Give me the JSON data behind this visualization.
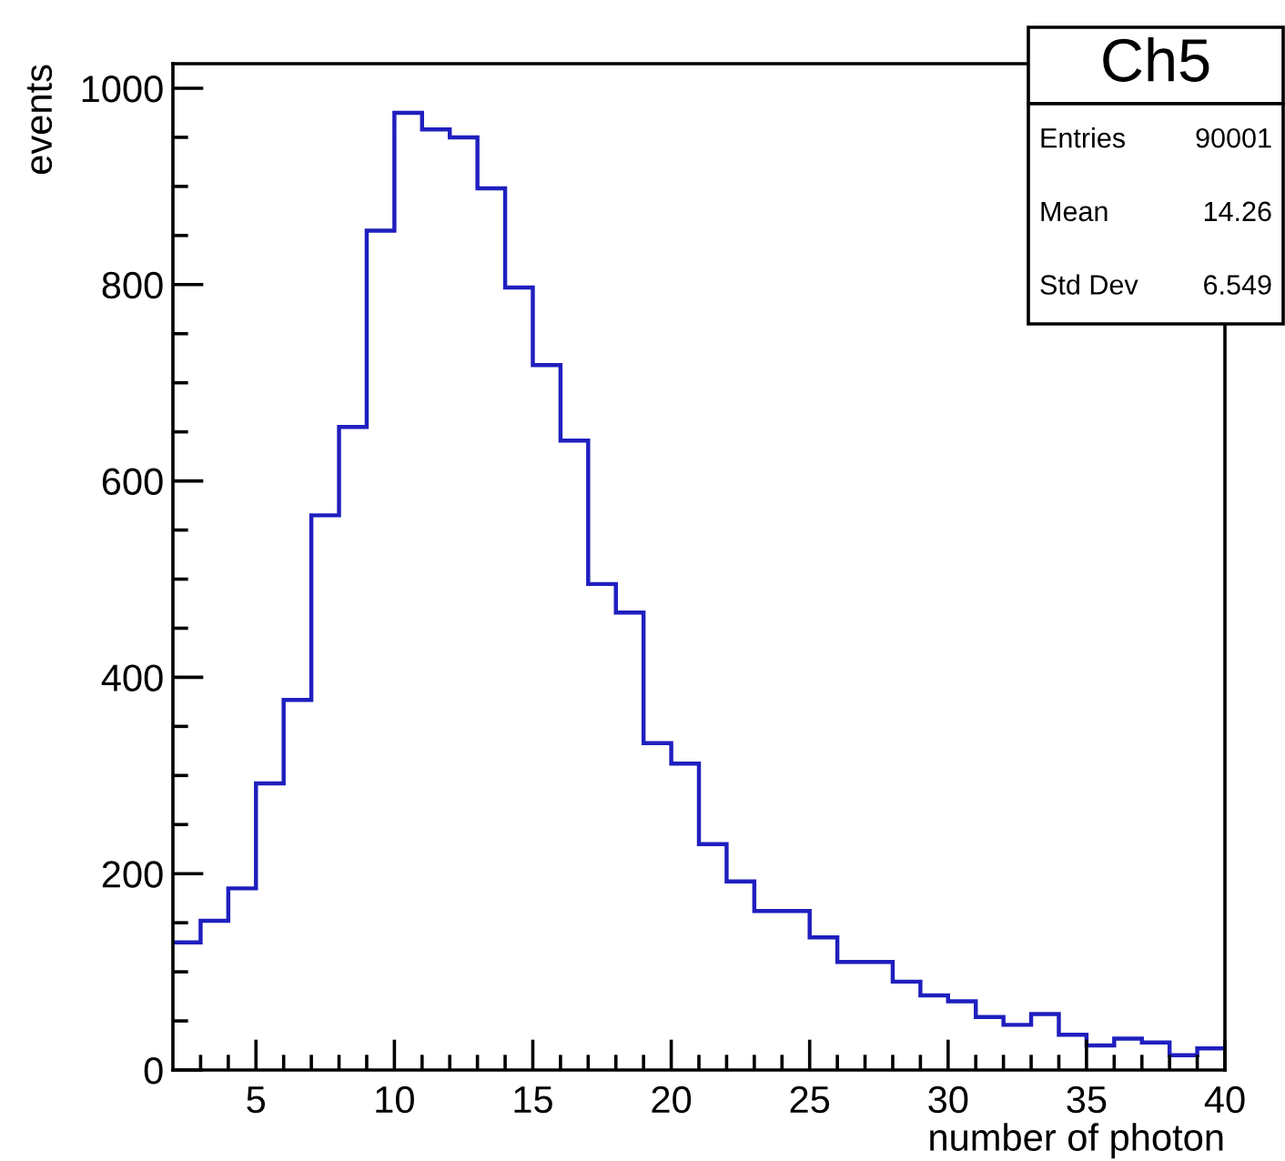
{
  "chart_data": {
    "type": "histogram",
    "title": "Ch5",
    "xlabel": "number of photon",
    "ylabel": "events",
    "bins": [
      2,
      3,
      4,
      5,
      6,
      7,
      8,
      9,
      10,
      11,
      12,
      13,
      14,
      15,
      16,
      17,
      18,
      19,
      20,
      21,
      22,
      23,
      24,
      25,
      26,
      27,
      28,
      29,
      30,
      31,
      32,
      33,
      34,
      35,
      36,
      37,
      38,
      39,
      40
    ],
    "values": [
      130,
      152,
      185,
      292,
      377,
      565,
      655,
      855,
      975,
      958,
      950,
      898,
      797,
      718,
      641,
      495,
      466,
      333,
      312,
      230,
      192,
      162,
      162,
      135,
      110,
      110,
      90,
      76,
      70,
      54,
      46,
      57,
      36,
      25,
      32,
      28,
      15,
      22
    ],
    "color": "#1f1fbf",
    "annotations": [
      "Entries",
      "90001",
      "Mean",
      "14.26",
      "Std Dev",
      "6.549"
    ],
    "xlim": [
      2,
      40
    ],
    "ylim": [
      0,
      1025
    ],
    "xticks": [
      {
        "value": 3,
        "label": null
      },
      {
        "value": 4,
        "label": null
      },
      5,
      {
        "value": 6,
        "label": null
      },
      {
        "value": 7,
        "label": null
      },
      {
        "value": 8,
        "label": null
      },
      {
        "value": 9,
        "label": null
      },
      10,
      {
        "value": 11,
        "label": null
      },
      {
        "value": 12,
        "label": null
      },
      {
        "value": 13,
        "label": null
      },
      {
        "value": 14,
        "label": null
      },
      15,
      {
        "value": 16,
        "label": null
      },
      {
        "value": 17,
        "label": null
      },
      {
        "value": 18,
        "label": null
      },
      {
        "value": 19,
        "label": null
      },
      20,
      {
        "value": 21,
        "label": null
      },
      {
        "value": 22,
        "label": null
      },
      {
        "value": 23,
        "label": null
      },
      {
        "value": 24,
        "label": null
      },
      25,
      {
        "value": 26,
        "label": null
      },
      {
        "value": 27,
        "label": null
      },
      {
        "value": 28,
        "label": null
      },
      {
        "value": 29,
        "label": null
      },
      30,
      {
        "value": 31,
        "label": null
      },
      {
        "value": 32,
        "label": null
      },
      {
        "value": 33,
        "label": null
      },
      {
        "value": 34,
        "label": null
      },
      35,
      {
        "value": 36,
        "label": null
      },
      {
        "value": 37,
        "label": null
      },
      {
        "value": 38,
        "label": null
      },
      {
        "value": 39,
        "label": null
      },
      40
    ],
    "yticks": [
      0,
      {
        "value": 50,
        "label": null
      },
      {
        "value": 100,
        "label": null
      },
      {
        "value": 150,
        "label": null
      },
      200,
      {
        "value": 250,
        "label": null
      },
      {
        "value": 300,
        "label": null
      },
      {
        "value": 350,
        "label": null
      },
      400,
      {
        "value": 450,
        "label": null
      },
      {
        "value": 500,
        "label": null
      },
      {
        "value": 550,
        "label": null
      },
      600,
      {
        "value": 650,
        "label": null
      },
      {
        "value": 700,
        "label": null
      },
      {
        "value": 750,
        "label": null
      },
      800,
      {
        "value": 850,
        "label": null
      },
      {
        "value": 900,
        "label": null
      },
      {
        "value": 950,
        "label": null
      },
      1000
    ],
    "grid": false
  }
}
